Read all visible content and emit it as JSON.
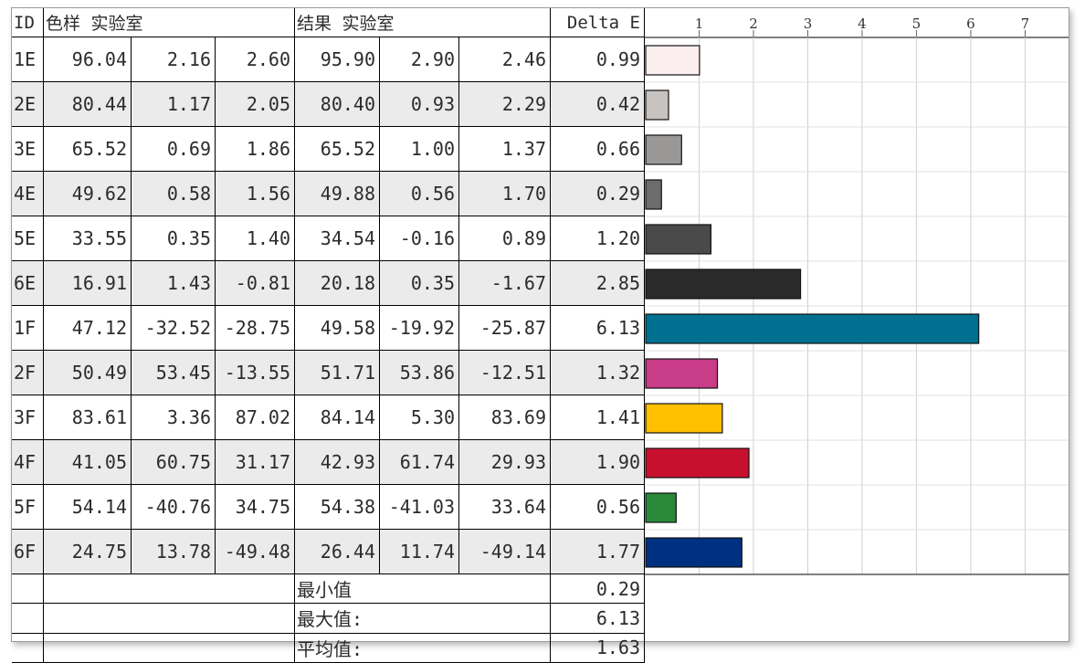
{
  "headers": {
    "id": "ID",
    "sample": "色样 实验室",
    "result": "结果 实验室",
    "delta": "Delta E"
  },
  "rows": [
    {
      "id": "1E",
      "s": [
        "96.04",
        "2.16",
        "2.60"
      ],
      "r": [
        "95.90",
        "2.90",
        "2.46"
      ],
      "de": "0.99"
    },
    {
      "id": "2E",
      "s": [
        "80.44",
        "1.17",
        "2.05"
      ],
      "r": [
        "80.40",
        "0.93",
        "2.29"
      ],
      "de": "0.42"
    },
    {
      "id": "3E",
      "s": [
        "65.52",
        "0.69",
        "1.86"
      ],
      "r": [
        "65.52",
        "1.00",
        "1.37"
      ],
      "de": "0.66"
    },
    {
      "id": "4E",
      "s": [
        "49.62",
        "0.58",
        "1.56"
      ],
      "r": [
        "49.88",
        "0.56",
        "1.70"
      ],
      "de": "0.29"
    },
    {
      "id": "5E",
      "s": [
        "33.55",
        "0.35",
        "1.40"
      ],
      "r": [
        "34.54",
        "-0.16",
        "0.89"
      ],
      "de": "1.20"
    },
    {
      "id": "6E",
      "s": [
        "16.91",
        "1.43",
        "-0.81"
      ],
      "r": [
        "20.18",
        "0.35",
        "-1.67"
      ],
      "de": "2.85"
    },
    {
      "id": "1F",
      "s": [
        "47.12",
        "-32.52",
        "-28.75"
      ],
      "r": [
        "49.58",
        "-19.92",
        "-25.87"
      ],
      "de": "6.13"
    },
    {
      "id": "2F",
      "s": [
        "50.49",
        "53.45",
        "-13.55"
      ],
      "r": [
        "51.71",
        "53.86",
        "-12.51"
      ],
      "de": "1.32"
    },
    {
      "id": "3F",
      "s": [
        "83.61",
        "3.36",
        "87.02"
      ],
      "r": [
        "84.14",
        "5.30",
        "83.69"
      ],
      "de": "1.41"
    },
    {
      "id": "4F",
      "s": [
        "41.05",
        "60.75",
        "31.17"
      ],
      "r": [
        "42.93",
        "61.74",
        "29.93"
      ],
      "de": "1.90"
    },
    {
      "id": "5F",
      "s": [
        "54.14",
        "-40.76",
        "34.75"
      ],
      "r": [
        "54.38",
        "-41.03",
        "33.64"
      ],
      "de": "0.56"
    },
    {
      "id": "6F",
      "s": [
        "24.75",
        "13.78",
        "-49.48"
      ],
      "r": [
        "26.44",
        "11.74",
        "-49.14"
      ],
      "de": "1.77"
    }
  ],
  "summary": [
    {
      "label": "最小值",
      "value": "0.29"
    },
    {
      "label": "最大值:",
      "value": "6.13"
    },
    {
      "label": "平均值:",
      "value": "1.63"
    }
  ],
  "chart_data": {
    "type": "bar",
    "orientation": "horizontal",
    "categories": [
      "1E",
      "2E",
      "3E",
      "4E",
      "5E",
      "6E",
      "1F",
      "2F",
      "3F",
      "4F",
      "5F",
      "6F"
    ],
    "values": [
      0.99,
      0.42,
      0.66,
      0.29,
      1.2,
      2.85,
      6.13,
      1.32,
      1.41,
      1.9,
      0.56,
      1.77
    ],
    "colors": [
      "#fbeeee",
      "#c6c3c0",
      "#9a9896",
      "#6c6c6c",
      "#4a4a4a",
      "#2a2a2a",
      "#007090",
      "#c83c88",
      "#ffc000",
      "#c8102e",
      "#2a8a3a",
      "#003080"
    ],
    "xticks": [
      "1",
      "2",
      "3",
      "4",
      "5",
      "6",
      "7"
    ],
    "xlim": [
      0,
      7.8
    ],
    "grid": true
  }
}
